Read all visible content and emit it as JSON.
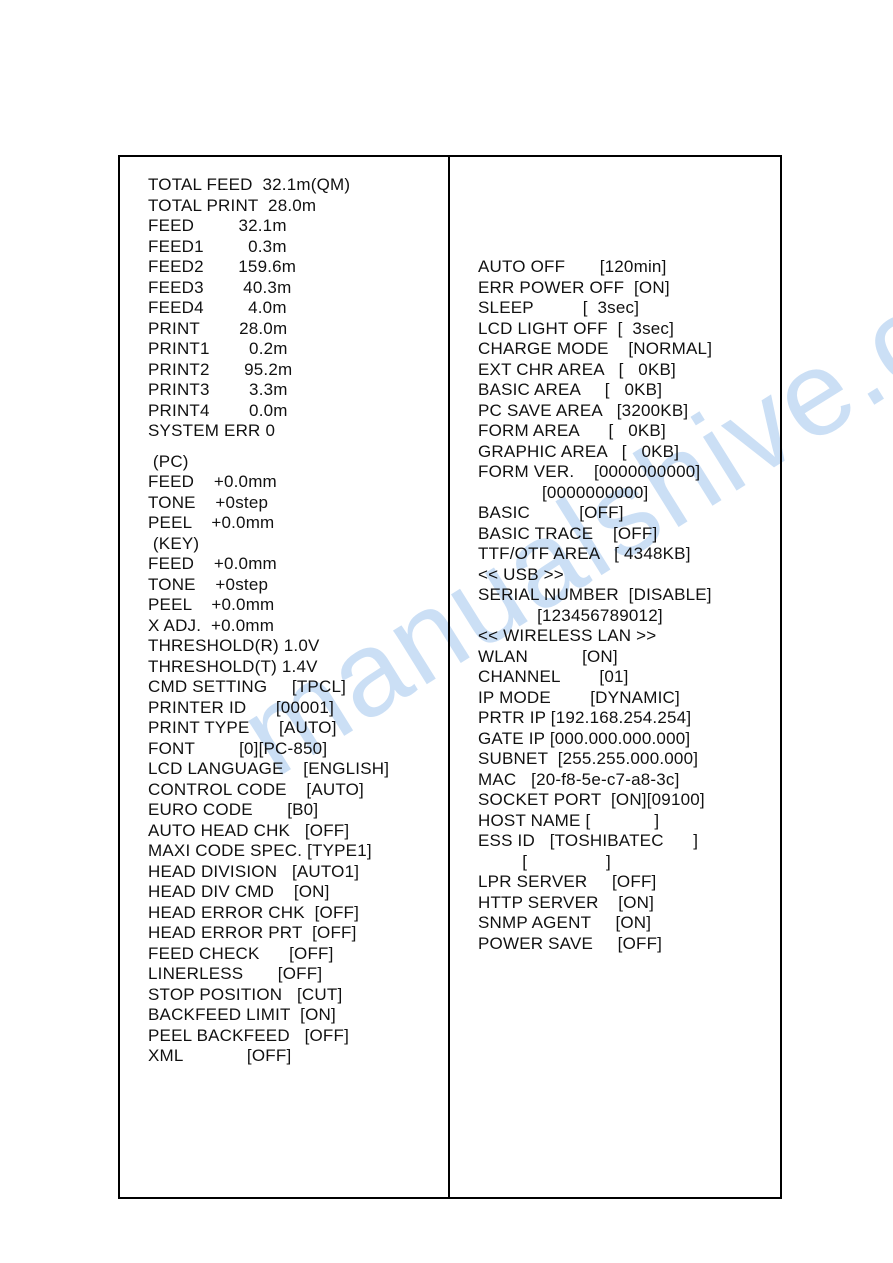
{
  "watermark": "manualshive.com",
  "left": [
    {
      "label": "TOTAL FEED",
      "value": "32.1m(QM)",
      "lw": 11,
      "vw": 10,
      "align": "right"
    },
    {
      "label": "TOTAL PRINT",
      "value": "28.0m",
      "lw": 11,
      "vw": 7,
      "align": "right"
    },
    {
      "label": "FEED",
      "value": "32.1m",
      "lw": 11,
      "vw": 7,
      "align": "right"
    },
    {
      "label": "FEED1",
      "value": "0.3m",
      "lw": 11,
      "vw": 7,
      "align": "right"
    },
    {
      "label": "FEED2",
      "value": "159.6m",
      "lw": 11,
      "vw": 7,
      "align": "right"
    },
    {
      "label": "FEED3",
      "value": "40.3m",
      "lw": 11,
      "vw": 7,
      "align": "right"
    },
    {
      "label": "FEED4",
      "value": "4.0m",
      "lw": 11,
      "vw": 7,
      "align": "right"
    },
    {
      "label": "PRINT",
      "value": "28.0m",
      "lw": 11,
      "vw": 7,
      "align": "right"
    },
    {
      "label": "PRINT1",
      "value": "0.2m",
      "lw": 11,
      "vw": 7,
      "align": "right"
    },
    {
      "label": "PRINT2",
      "value": "95.2m",
      "lw": 11,
      "vw": 7,
      "align": "right"
    },
    {
      "label": "PRINT3",
      "value": "3.3m",
      "lw": 11,
      "vw": 7,
      "align": "right"
    },
    {
      "label": "PRINT4",
      "value": "0.0m",
      "lw": 11,
      "vw": 7,
      "align": "right"
    },
    {
      "label": "SYSTEM ERR 0",
      "value": "",
      "lw": 14,
      "vw": 0,
      "align": "left"
    },
    {
      "type": "gap"
    },
    {
      "indent": " ",
      "label": "(PC)",
      "value": "",
      "lw": 5,
      "vw": 0,
      "align": "left"
    },
    {
      "label": "FEED",
      "value": "+0.0mm",
      "lw": 8,
      "vw": 8,
      "align": "left"
    },
    {
      "label": "TONE",
      "value": "+0step",
      "lw": 8,
      "vw": 8,
      "align": "left"
    },
    {
      "label": "PEEL",
      "value": "+0.0mm",
      "lw": 8,
      "vw": 8,
      "align": "left"
    },
    {
      "indent": " ",
      "label": "(KEY)",
      "value": "",
      "lw": 6,
      "vw": 0,
      "align": "left"
    },
    {
      "label": "FEED",
      "value": "+0.0mm",
      "lw": 8,
      "vw": 8,
      "align": "left"
    },
    {
      "label": "TONE",
      "value": "+0step",
      "lw": 8,
      "vw": 8,
      "align": "left"
    },
    {
      "label": "PEEL",
      "value": "+0.0mm",
      "lw": 8,
      "vw": 8,
      "align": "left"
    },
    {
      "label": "X ADJ.",
      "value": "+0.0mm",
      "lw": 8,
      "vw": 8,
      "align": "left"
    },
    {
      "label": "THRESHOLD(R) 1.0V",
      "value": "",
      "lw": 18,
      "vw": 0,
      "align": "left"
    },
    {
      "label": "THRESHOLD(T) 1.4V",
      "value": "",
      "lw": 18,
      "vw": 0,
      "align": "left"
    },
    {
      "label": "CMD SETTING",
      "value": "[TPCL]",
      "lw": 16,
      "vw": 8,
      "align": "left"
    },
    {
      "label": "PRINTER ID",
      "value": "[00001]",
      "lw": 16,
      "vw": 8,
      "align": "left"
    },
    {
      "label": "PRINT TYPE",
      "value": "[AUTO]",
      "lw": 16,
      "vw": 8,
      "align": "left"
    },
    {
      "label": "FONT         [0]",
      "value": "[PC-850]",
      "lw": 16,
      "vw": 10,
      "align": "left"
    },
    {
      "label": "LCD LANGUAGE",
      "value": "[ENGLISH]",
      "lw": 16,
      "vw": 10,
      "align": "left"
    },
    {
      "label": "CONTROL CODE",
      "value": "[AUTO]",
      "lw": 16,
      "vw": 8,
      "align": "left"
    },
    {
      "label": "EURO CODE",
      "value": "[B0]",
      "lw": 16,
      "vw": 6,
      "align": "left"
    },
    {
      "label": "AUTO HEAD CHK",
      "value": "[OFF]",
      "lw": 16,
      "vw": 6,
      "align": "left"
    },
    {
      "label": "MAXI CODE SPEC.",
      "value": "[TYPE1]",
      "lw": 16,
      "vw": 8,
      "align": "left"
    },
    {
      "label": "HEAD DIVISION",
      "value": "[AUTO1]",
      "lw": 16,
      "vw": 8,
      "align": "left"
    },
    {
      "label": "HEAD DIV CMD",
      "value": "[ON]",
      "lw": 16,
      "vw": 6,
      "align": "left"
    },
    {
      "label": "HEAD ERROR CHK",
      "value": "[OFF]",
      "lw": 16,
      "vw": 6,
      "align": "left"
    },
    {
      "label": "HEAD ERROR PRT",
      "value": "[OFF]",
      "lw": 16,
      "vw": 6,
      "align": "left"
    },
    {
      "label": "FEED CHECK",
      "value": "[OFF]",
      "lw": 16,
      "vw": 6,
      "align": "left"
    },
    {
      "label": "LINERLESS",
      "value": "[OFF]",
      "lw": 16,
      "vw": 6,
      "align": "left"
    },
    {
      "label": "STOP POSITION",
      "value": "[CUT]",
      "lw": 16,
      "vw": 6,
      "align": "left"
    },
    {
      "label": "BACKFEED LIMIT",
      "value": "[ON]",
      "lw": 16,
      "vw": 6,
      "align": "left"
    },
    {
      "label": "PEEL BACKFEED",
      "value": "[OFF]",
      "lw": 16,
      "vw": 6,
      "align": "left"
    },
    {
      "label": "XML",
      "value": "[OFF]",
      "lw": 16,
      "vw": 6,
      "align": "left"
    }
  ],
  "right": [
    {
      "label": "AUTO OFF",
      "value": "[120min]",
      "lw": 15,
      "vw": 9,
      "align": "left"
    },
    {
      "label": "ERR POWER OFF",
      "value": "[ON]",
      "lw": 15,
      "vw": 6,
      "align": "left"
    },
    {
      "label": "SLEEP",
      "value": "[  3sec]",
      "lw": 15,
      "vw": 9,
      "align": "left"
    },
    {
      "label": "LCD LIGHT OFF",
      "value": "[  3sec]",
      "lw": 15,
      "vw": 9,
      "align": "left"
    },
    {
      "label": "CHARGE MODE",
      "value": "[NORMAL]",
      "lw": 15,
      "vw": 9,
      "align": "left"
    },
    {
      "label": "EXT CHR AREA",
      "value": "[   0KB]",
      "lw": 15,
      "vw": 9,
      "align": "left"
    },
    {
      "label": "BASIC AREA",
      "value": "[   0KB]",
      "lw": 15,
      "vw": 9,
      "align": "left"
    },
    {
      "label": "PC SAVE AREA",
      "value": "[3200KB]",
      "lw": 15,
      "vw": 9,
      "align": "left"
    },
    {
      "label": "FORM AREA",
      "value": "[   0KB]",
      "lw": 15,
      "vw": 9,
      "align": "left"
    },
    {
      "label": "GRAPHIC AREA",
      "value": "[   0KB]",
      "lw": 15,
      "vw": 9,
      "align": "left"
    },
    {
      "label": "FORM VER.",
      "value": "[0000000000]",
      "lw": 13,
      "vw": 13,
      "align": "left"
    },
    {
      "label": "",
      "value": "[0000000000]",
      "lw": 13,
      "vw": 13,
      "align": "left"
    },
    {
      "label": "BASIC",
      "value": "[OFF]",
      "lw": 15,
      "vw": 6,
      "align": "left"
    },
    {
      "label": "BASIC TRACE",
      "value": "[OFF]",
      "lw": 15,
      "vw": 6,
      "align": "left"
    },
    {
      "label": "TTF/OTF AREA",
      "value": "[ 4348KB]",
      "lw": 15,
      "vw": 10,
      "align": "left"
    },
    {
      "label": "<< USB >>",
      "value": "",
      "lw": 10,
      "vw": 0,
      "align": "left"
    },
    {
      "label": "SERIAL NUMBER",
      "value": "[DISABLE]",
      "lw": 15,
      "vw": 10,
      "align": "left"
    },
    {
      "label": "",
      "value": "[123456789012]",
      "lw": 12,
      "vw": 15,
      "align": "left"
    },
    {
      "label": "<< WIRELESS LAN >>",
      "value": "",
      "lw": 20,
      "vw": 0,
      "align": "left"
    },
    {
      "label": "WLAN",
      "value": "[ON]",
      "lw": 15,
      "vw": 6,
      "align": "left"
    },
    {
      "label": "CHANNEL",
      "value": "[01]",
      "lw": 15,
      "vw": 6,
      "align": "left"
    },
    {
      "label": "IP MODE",
      "value": "[DYNAMIC]",
      "lw": 15,
      "vw": 10,
      "align": "left"
    },
    {
      "label": "PRTR IP",
      "value": "[192.168.254.254]",
      "lw": 8,
      "vw": 18,
      "align": "left"
    },
    {
      "label": "GATE IP",
      "value": "[000.000.000.000]",
      "lw": 8,
      "vw": 18,
      "align": "left"
    },
    {
      "label": "SUBNET",
      "value": "[255.255.000.000]",
      "lw": 8,
      "vw": 18,
      "align": "left"
    },
    {
      "label": "MAC",
      "value": "[20-f8-5e-c7-a8-3c]",
      "lw": 6,
      "vw": 20,
      "align": "left"
    },
    {
      "label": "SOCKET PORT",
      "value": "[ON][09100]",
      "lw": 13,
      "vw": 12,
      "align": "left"
    },
    {
      "label": "HOST NAME [",
      "value": "]",
      "lw": 24,
      "vw": 2,
      "align": "left"
    },
    {
      "label": "ESS ID",
      "value": "[TOSHIBATEC      ]",
      "lw": 9,
      "vw": 18,
      "align": "left"
    },
    {
      "label": "",
      "value": "[                ]",
      "lw": 9,
      "vw": 18,
      "align": "left"
    },
    {
      "label": "LPR SERVER",
      "value": "[OFF]",
      "lw": 15,
      "vw": 6,
      "align": "left"
    },
    {
      "label": "HTTP SERVER",
      "value": "[ON]",
      "lw": 15,
      "vw": 6,
      "align": "left"
    },
    {
      "label": "SNMP AGENT",
      "value": "[ON]",
      "lw": 15,
      "vw": 6,
      "align": "left"
    },
    {
      "label": "POWER SAVE",
      "value": "[OFF]",
      "lw": 15,
      "vw": 6,
      "align": "left"
    }
  ]
}
